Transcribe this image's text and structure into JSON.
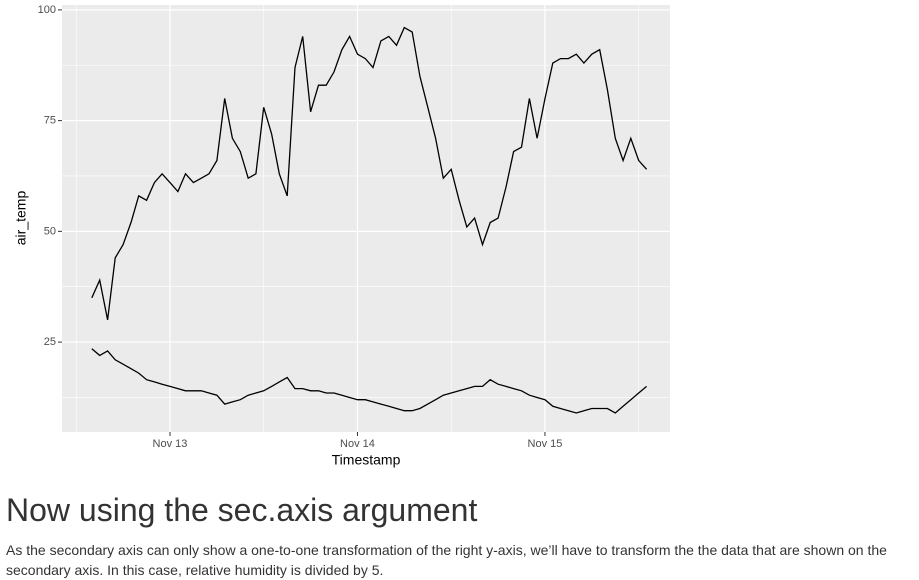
{
  "chart_data": {
    "type": "line",
    "y_label": "air_temp",
    "x_label": "Timestamp",
    "x": [
      12.583,
      12.625,
      12.667,
      12.708,
      12.75,
      12.792,
      12.833,
      12.875,
      12.917,
      12.958,
      13,
      13.042,
      13.083,
      13.125,
      13.167,
      13.208,
      13.25,
      13.292,
      13.333,
      13.375,
      13.417,
      13.458,
      13.5,
      13.542,
      13.583,
      13.625,
      13.667,
      13.708,
      13.75,
      13.792,
      13.833,
      13.875,
      13.917,
      13.958,
      14,
      14.042,
      14.083,
      14.125,
      14.167,
      14.208,
      14.25,
      14.292,
      14.333,
      14.375,
      14.417,
      14.458,
      14.5,
      14.542,
      14.583,
      14.625,
      14.667,
      14.708,
      14.75,
      14.792,
      14.833,
      14.875,
      14.917,
      14.958,
      15,
      15.042,
      15.083,
      15.125,
      15.167,
      15.208,
      15.25,
      15.292,
      15.333,
      15.375,
      15.417,
      15.458,
      15.5,
      15.542
    ],
    "series": [
      {
        "color": "#000000",
        "values": [
          35,
          39,
          30,
          44,
          47,
          52,
          58,
          57,
          61,
          63,
          61,
          59,
          63,
          61,
          62,
          63,
          66,
          80,
          71,
          68,
          62,
          63,
          78,
          72,
          63,
          58,
          87,
          94,
          77,
          83,
          83,
          86,
          91,
          94,
          90,
          89,
          87,
          93,
          94,
          92,
          96,
          95,
          85,
          78,
          71,
          62,
          64,
          57,
          51,
          53,
          47,
          52,
          53,
          60,
          68,
          69,
          80,
          71,
          80,
          88,
          89,
          89,
          90,
          88,
          90,
          91,
          82,
          71,
          66,
          71,
          66,
          64
        ]
      },
      {
        "color": "#000000",
        "values": [
          23.5,
          22,
          23,
          21,
          20,
          19,
          18,
          16.5,
          16,
          15.5,
          15,
          14.5,
          14,
          14,
          14,
          13.5,
          13,
          11,
          11.5,
          12,
          13,
          13.5,
          14,
          15,
          16,
          17,
          14.5,
          14.5,
          14,
          14,
          13.5,
          13.5,
          13,
          12.5,
          12,
          12,
          11.5,
          11,
          10.5,
          10,
          9.5,
          9.5,
          10,
          11,
          12,
          13,
          13.5,
          14,
          14.5,
          15,
          15,
          16.5,
          15.5,
          15,
          14.5,
          14,
          13,
          12.5,
          12,
          10.5,
          10,
          9.5,
          9,
          9.5,
          10,
          10,
          10,
          9,
          10.5,
          12,
          13.5,
          15
        ]
      }
    ],
    "xlim": [
      12.424,
      15.667
    ],
    "xticks": [
      {
        "value": 13,
        "label": "Nov 13"
      },
      {
        "value": 14,
        "label": "Nov 14"
      },
      {
        "value": 15,
        "label": "Nov 15"
      }
    ],
    "xminor": [
      12.5,
      13.5,
      14.5,
      15.5
    ],
    "ylim": [
      4.7,
      101.1
    ],
    "yticks": [
      25,
      50,
      75,
      100
    ],
    "yminor": [
      12.5,
      37.5,
      62.5,
      87.5
    ],
    "grid": true
  },
  "heading": "Now using the sec.axis argument",
  "paragraph": "As the secondary axis can only show a one-to-one transformation of the right y-axis, we’ll have to transform the the data that are shown on the secondary axis. In this case, relative humidity is divided by 5."
}
